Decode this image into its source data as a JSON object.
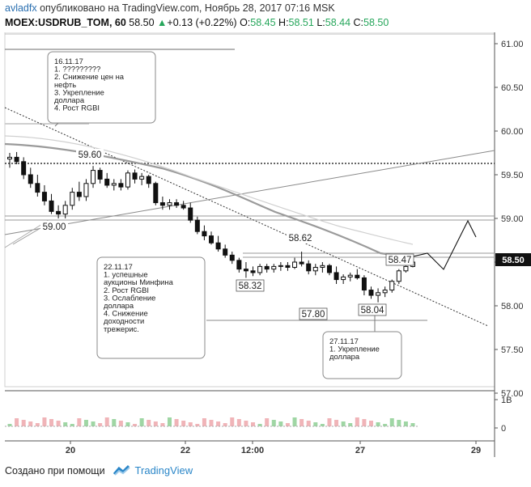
{
  "header": {
    "author": "avladfx",
    "published": "опубликовано на TradingView.com, Ноябрь 28, 2017 07:16 MSK",
    "symbol": "MOEX:USDRUB_TOM, 60",
    "last": "58.50",
    "change_arrow": "▲",
    "change": "+0.13 (+0.22%)",
    "o_label": "O:",
    "o_value": "58.45",
    "h_label": "H:",
    "h_value": "58.51",
    "l_label": "L:",
    "l_value": "58.44",
    "c_label": "C:",
    "c_value": "58.50"
  },
  "footer": {
    "created_with": "Создано при помощи",
    "brand": "TradingView"
  },
  "colors": {
    "candle": "#111111",
    "volume_up": "#9fd6a4",
    "volume_down": "#f0b4b8",
    "price_tag_bg": "#111111",
    "accent": "#2a86c8",
    "up": "#26a65b"
  },
  "chart_data": {
    "type": "candlestick",
    "price_axis": {
      "ticks": [
        "61.00",
        "60.50",
        "60.00",
        "59.50",
        "59.00",
        "58.50",
        "58.00",
        "57.50",
        "57.00"
      ],
      "ylim": [
        57.0,
        61.0
      ],
      "current_tag": "58.50"
    },
    "time_axis": {
      "ticks": [
        "20",
        "22",
        "12:00",
        "27",
        "29"
      ]
    },
    "volume_axis": {
      "ticks": [
        "1B",
        "0"
      ]
    },
    "candles": [
      {
        "o": 59.68,
        "h": 59.75,
        "l": 59.58,
        "c": 59.7
      },
      {
        "o": 59.7,
        "h": 59.76,
        "l": 59.62,
        "c": 59.65
      },
      {
        "o": 59.65,
        "h": 59.7,
        "l": 59.45,
        "c": 59.5
      },
      {
        "o": 59.5,
        "h": 59.58,
        "l": 59.35,
        "c": 59.4
      },
      {
        "o": 59.4,
        "h": 59.5,
        "l": 59.25,
        "c": 59.3
      },
      {
        "o": 59.3,
        "h": 59.38,
        "l": 59.15,
        "c": 59.2
      },
      {
        "o": 59.2,
        "h": 59.28,
        "l": 59.05,
        "c": 59.08
      },
      {
        "o": 59.08,
        "h": 59.15,
        "l": 59.0,
        "c": 59.05
      },
      {
        "o": 59.05,
        "h": 59.2,
        "l": 59.0,
        "c": 59.15
      },
      {
        "o": 59.15,
        "h": 59.35,
        "l": 59.1,
        "c": 59.3
      },
      {
        "o": 59.3,
        "h": 59.42,
        "l": 59.2,
        "c": 59.25
      },
      {
        "o": 59.25,
        "h": 59.45,
        "l": 59.2,
        "c": 59.4
      },
      {
        "o": 59.4,
        "h": 59.6,
        "l": 59.35,
        "c": 59.55
      },
      {
        "o": 59.55,
        "h": 59.58,
        "l": 59.4,
        "c": 59.45
      },
      {
        "o": 59.45,
        "h": 59.52,
        "l": 59.35,
        "c": 59.38
      },
      {
        "o": 59.38,
        "h": 59.45,
        "l": 59.32,
        "c": 59.4
      },
      {
        "o": 59.4,
        "h": 59.45,
        "l": 59.32,
        "c": 59.36
      },
      {
        "o": 59.36,
        "h": 59.55,
        "l": 59.33,
        "c": 59.52
      },
      {
        "o": 59.52,
        "h": 59.56,
        "l": 59.4,
        "c": 59.45
      },
      {
        "o": 59.45,
        "h": 59.52,
        "l": 59.38,
        "c": 59.48
      },
      {
        "o": 59.48,
        "h": 59.5,
        "l": 59.35,
        "c": 59.4
      },
      {
        "o": 59.4,
        "h": 59.42,
        "l": 59.15,
        "c": 59.18
      },
      {
        "o": 59.18,
        "h": 59.25,
        "l": 59.1,
        "c": 59.15
      },
      {
        "o": 59.15,
        "h": 59.22,
        "l": 59.1,
        "c": 59.18
      },
      {
        "o": 59.18,
        "h": 59.22,
        "l": 59.12,
        "c": 59.15
      },
      {
        "o": 59.15,
        "h": 59.2,
        "l": 59.1,
        "c": 59.12
      },
      {
        "o": 59.12,
        "h": 59.18,
        "l": 58.95,
        "c": 58.98
      },
      {
        "o": 58.98,
        "h": 59.02,
        "l": 58.82,
        "c": 58.85
      },
      {
        "o": 58.85,
        "h": 58.92,
        "l": 58.75,
        "c": 58.8
      },
      {
        "o": 58.8,
        "h": 58.85,
        "l": 58.7,
        "c": 58.72
      },
      {
        "o": 58.72,
        "h": 58.8,
        "l": 58.62,
        "c": 58.65
      },
      {
        "o": 58.65,
        "h": 58.7,
        "l": 58.55,
        "c": 58.58
      },
      {
        "o": 58.58,
        "h": 58.62,
        "l": 58.48,
        "c": 58.52
      },
      {
        "o": 58.52,
        "h": 58.55,
        "l": 58.38,
        "c": 58.42
      },
      {
        "o": 58.42,
        "h": 58.5,
        "l": 58.32,
        "c": 58.4
      },
      {
        "o": 58.4,
        "h": 58.45,
        "l": 58.34,
        "c": 58.38
      },
      {
        "o": 58.38,
        "h": 58.48,
        "l": 58.35,
        "c": 58.45
      },
      {
        "o": 58.45,
        "h": 58.48,
        "l": 58.38,
        "c": 58.42
      },
      {
        "o": 58.42,
        "h": 58.48,
        "l": 58.38,
        "c": 58.45
      },
      {
        "o": 58.45,
        "h": 58.5,
        "l": 58.4,
        "c": 58.46
      },
      {
        "o": 58.46,
        "h": 58.5,
        "l": 58.4,
        "c": 58.44
      },
      {
        "o": 58.44,
        "h": 58.55,
        "l": 58.42,
        "c": 58.5
      },
      {
        "o": 58.5,
        "h": 58.62,
        "l": 58.45,
        "c": 58.48
      },
      {
        "o": 58.48,
        "h": 58.52,
        "l": 58.36,
        "c": 58.4
      },
      {
        "o": 58.4,
        "h": 58.48,
        "l": 58.35,
        "c": 58.44
      },
      {
        "o": 58.44,
        "h": 58.5,
        "l": 58.38,
        "c": 58.46
      },
      {
        "o": 58.46,
        "h": 58.48,
        "l": 58.35,
        "c": 58.38
      },
      {
        "o": 58.38,
        "h": 58.45,
        "l": 58.25,
        "c": 58.3
      },
      {
        "o": 58.3,
        "h": 58.36,
        "l": 58.25,
        "c": 58.33
      },
      {
        "o": 58.33,
        "h": 58.38,
        "l": 58.28,
        "c": 58.35
      },
      {
        "o": 58.35,
        "h": 58.42,
        "l": 58.3,
        "c": 58.32
      },
      {
        "o": 58.32,
        "h": 58.35,
        "l": 58.12,
        "c": 58.18
      },
      {
        "o": 58.18,
        "h": 58.22,
        "l": 58.08,
        "c": 58.12
      },
      {
        "o": 58.12,
        "h": 58.2,
        "l": 58.04,
        "c": 58.15
      },
      {
        "o": 58.15,
        "h": 58.22,
        "l": 58.1,
        "c": 58.18
      },
      {
        "o": 58.18,
        "h": 58.3,
        "l": 58.15,
        "c": 58.28
      },
      {
        "o": 58.28,
        "h": 58.42,
        "l": 58.25,
        "c": 58.4
      },
      {
        "o": 58.4,
        "h": 58.48,
        "l": 58.38,
        "c": 58.45
      },
      {
        "o": 58.45,
        "h": 58.51,
        "l": 58.44,
        "c": 58.5
      }
    ],
    "price_labels": [
      "59.60",
      "59.00",
      "58.62",
      "58.32",
      "57.80",
      "58.04",
      "58.47"
    ],
    "annotations": [
      {
        "lines": [
          "16.11.17",
          "1. ?????????",
          "2. Снижение цен на",
          "нефть",
          "3. Укрепление",
          "доллара",
          "4. Рост RGBI"
        ]
      },
      {
        "lines": [
          "22.11.17",
          "1. успешные",
          "аукционы Минфина",
          "2. Рост RGBI",
          "3. Ослабление",
          "доллара",
          "4. Снижение",
          "доходности",
          "трежерис."
        ]
      },
      {
        "lines": [
          "27.11.17",
          "1.  Укрепление",
          "доллара"
        ]
      }
    ],
    "legend": "none"
  }
}
